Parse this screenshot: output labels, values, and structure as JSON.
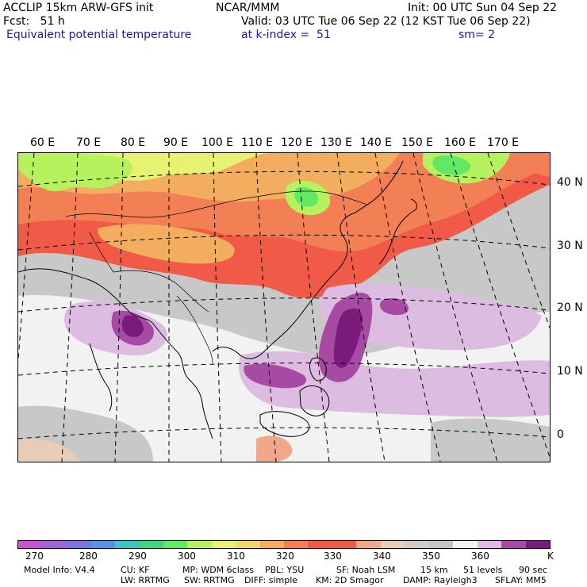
{
  "header": {
    "line1_left": "ACCLIP 15km ARW-GFS init",
    "line1_mid": "NCAR/MMM",
    "line1_right": "Init: 00 UTC Sun 04 Sep 22",
    "line2_left": "Fcst:   51 h",
    "line2_right": "Valid: 03 UTC Tue 06 Sep 22 (12 KST Tue 06 Sep 22)",
    "line3_left": "Equivalent potential temperature",
    "line3_mid": "at k-index =  51",
    "line3_right": "sm= 2"
  },
  "map": {
    "lon_labels": [
      "60 E",
      "70 E",
      "80 E",
      "90 E",
      "100 E",
      "110 E",
      "120 E",
      "130 E",
      "140 E",
      "150 E",
      "160 E",
      "170 E"
    ],
    "lat_labels": [
      "40 N",
      "30 N",
      "20 N",
      "10 N",
      "0"
    ]
  },
  "colorbar": {
    "colors": [
      "#c455cc",
      "#a265d8",
      "#7a74e0",
      "#5a90e6",
      "#3ac4c4",
      "#3cd68a",
      "#63e866",
      "#b6f25e",
      "#e6f271",
      "#f2d66a",
      "#f2ae5e",
      "#f28054",
      "#f25a48",
      "#ee5a48",
      "#f0a888",
      "#e8ccb8",
      "#d2cbc5",
      "#c5c5c5",
      "#f2f2f2",
      "#dcbce0",
      "#a64aa4",
      "#7a1a7a"
    ],
    "tick_labels": [
      "270",
      "280",
      "290",
      "300",
      "310",
      "320",
      "330",
      "340",
      "350",
      "360"
    ],
    "unit": "K"
  },
  "footer": {
    "line1": [
      "Model Info: V4.4",
      "CU: KF",
      "MP: WDM 6class",
      "PBL: YSU",
      "SF: Noah LSM",
      "15 km",
      "51 levels",
      "90 sec"
    ],
    "line2": [
      "LW: RRTMG",
      "SW: RRTMG",
      "DIFF: simple",
      "KM: 2D Smagor",
      "DAMP: Rayleigh3",
      "SFLAY: MM5"
    ]
  }
}
